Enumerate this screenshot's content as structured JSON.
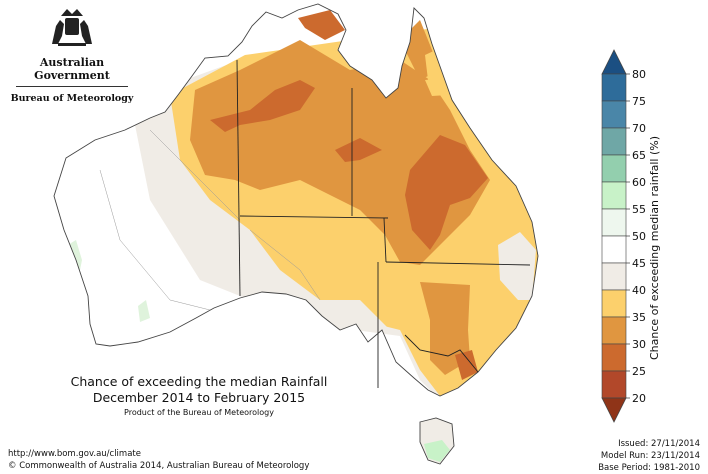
{
  "header": {
    "logo_title": "Australian Government",
    "logo_subtitle": "Bureau of Meteorology",
    "logo_icon": "coat-of-arms-icon"
  },
  "caption": {
    "line1": "Chance of exceeding the median Rainfall",
    "line2": "December 2014 to February 2015",
    "credit": "Product of the Bureau of Meteorology"
  },
  "legend": {
    "title": "Chance of exceeding median rainfall (%)",
    "ticks": [
      "80",
      "75",
      "70",
      "65",
      "60",
      "55",
      "50",
      "45",
      "40",
      "35",
      "30",
      "25",
      "20"
    ],
    "colors": [
      "#2e6c9a",
      "#4a86a8",
      "#6fa7a6",
      "#93cfae",
      "#c8f2c8",
      "#eef7ee",
      "#ffffff",
      "#f0ece6",
      "#fcd06c",
      "#e09640",
      "#cc6a2e",
      "#b2482a"
    ],
    "arrow_top_color": "#1b4f82",
    "arrow_bottom_color": "#8f3418"
  },
  "footer": {
    "url": "http://www.bom.gov.au/climate",
    "copyright": "© Commonwealth of Australia 2014, Australian Bureau of Meteorology",
    "issued": "Issued: 27/11/2014",
    "model_run": "Model Run: 23/11/2014",
    "base_period": "Base Period: 1981-2010"
  }
}
